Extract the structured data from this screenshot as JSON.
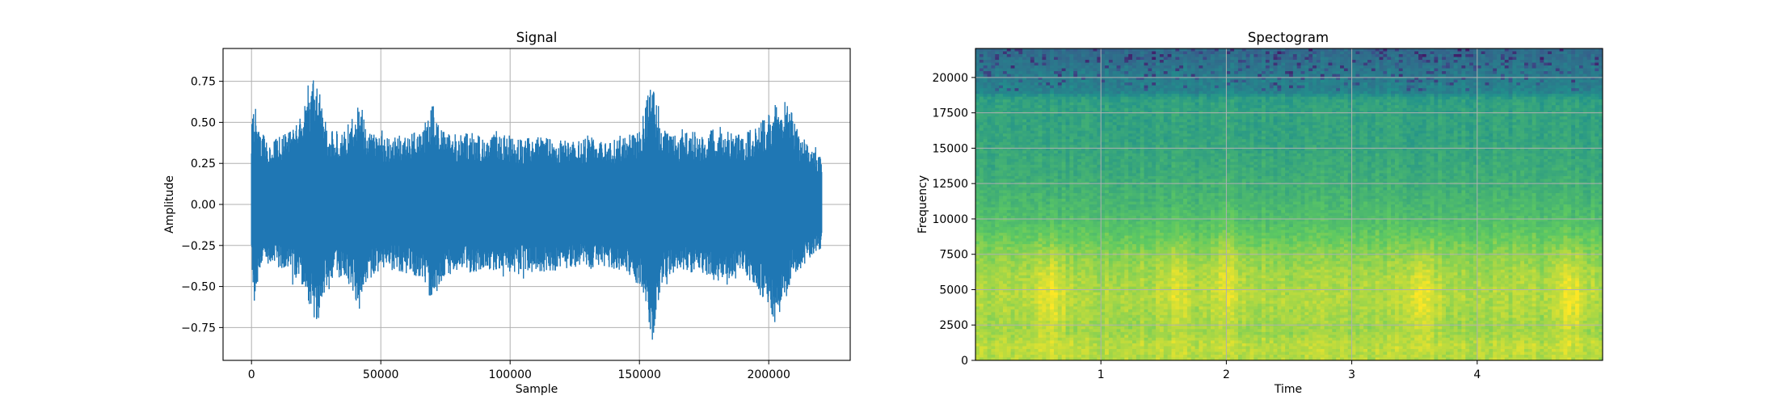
{
  "colors": {
    "signal": "#1f77b4",
    "grid": "#b0b0b0",
    "axes": "#000000",
    "viridis": [
      "#440154",
      "#3b528b",
      "#21918c",
      "#5ec962",
      "#fde725"
    ]
  },
  "chart_data": [
    {
      "type": "line",
      "title": "Signal",
      "xlabel": "Sample",
      "ylabel": "Amplitude",
      "grid": true,
      "xlim": [
        -11000,
        231500
      ],
      "ylim": [
        -0.95,
        0.95
      ],
      "xticks": [
        0,
        50000,
        100000,
        150000,
        200000
      ],
      "xtick_labels": [
        "0",
        "50000",
        "100000",
        "150000",
        "200000"
      ],
      "yticks": [
        -0.75,
        -0.5,
        -0.25,
        0.0,
        0.25,
        0.5,
        0.75
      ],
      "ytick_labels": [
        "−0.75",
        "−0.50",
        "−0.25",
        "0.00",
        "0.25",
        "0.50",
        "0.75"
      ],
      "n_samples": 220500,
      "envelope": {
        "x": [
          0,
          1500,
          3000,
          6000,
          10000,
          15000,
          20000,
          23000,
          25000,
          27000,
          30000,
          35000,
          40000,
          42000,
          45000,
          50000,
          55000,
          60000,
          65000,
          69000,
          70000,
          72000,
          75000,
          80000,
          85000,
          90000,
          95000,
          100000,
          105000,
          110000,
          115000,
          120000,
          125000,
          130000,
          135000,
          140000,
          145000,
          150000,
          153000,
          155000,
          157000,
          160000,
          165000,
          170000,
          175000,
          180000,
          185000,
          190000,
          195000,
          200000,
          203000,
          206000,
          209000,
          212000,
          215000,
          218000,
          220500
        ],
        "upper": [
          0.5,
          0.6,
          0.45,
          0.4,
          0.42,
          0.45,
          0.55,
          0.72,
          0.84,
          0.62,
          0.45,
          0.45,
          0.55,
          0.65,
          0.45,
          0.42,
          0.42,
          0.42,
          0.45,
          0.55,
          0.68,
          0.5,
          0.45,
          0.42,
          0.45,
          0.4,
          0.45,
          0.42,
          0.4,
          0.42,
          0.42,
          0.4,
          0.38,
          0.42,
          0.38,
          0.4,
          0.42,
          0.45,
          0.65,
          0.84,
          0.55,
          0.45,
          0.42,
          0.45,
          0.42,
          0.48,
          0.45,
          0.42,
          0.48,
          0.55,
          0.62,
          0.62,
          0.58,
          0.42,
          0.38,
          0.32,
          0.3
        ],
        "lower": [
          -0.4,
          -0.6,
          -0.4,
          -0.38,
          -0.4,
          -0.42,
          -0.5,
          -0.65,
          -0.78,
          -0.6,
          -0.45,
          -0.45,
          -0.55,
          -0.75,
          -0.45,
          -0.42,
          -0.4,
          -0.42,
          -0.45,
          -0.5,
          -0.62,
          -0.55,
          -0.45,
          -0.4,
          -0.42,
          -0.4,
          -0.42,
          -0.42,
          -0.4,
          -0.42,
          -0.42,
          -0.4,
          -0.38,
          -0.4,
          -0.38,
          -0.4,
          -0.42,
          -0.5,
          -0.65,
          -0.86,
          -0.6,
          -0.45,
          -0.42,
          -0.42,
          -0.42,
          -0.48,
          -0.45,
          -0.42,
          -0.5,
          -0.7,
          -0.78,
          -0.55,
          -0.45,
          -0.4,
          -0.36,
          -0.3,
          -0.28
        ]
      }
    },
    {
      "type": "heatmap",
      "title": "Spectogram",
      "xlabel": "Time",
      "ylabel": "Frequency",
      "grid": true,
      "colormap": "viridis",
      "xlim": [
        0.0,
        5.0
      ],
      "ylim": [
        0,
        22050
      ],
      "xticks": [
        1,
        2,
        3,
        4
      ],
      "xtick_labels": [
        "1",
        "2",
        "3",
        "4"
      ],
      "yticks": [
        0,
        2500,
        5000,
        7500,
        10000,
        12500,
        15000,
        17500,
        20000
      ],
      "ytick_labels": [
        "0",
        "2500",
        "5000",
        "7500",
        "10000",
        "12500",
        "15000",
        "17500",
        "20000"
      ],
      "frequency_profile": {
        "freq": [
          0,
          1000,
          2000,
          3000,
          4500,
          6000,
          7500,
          9000,
          10000,
          11500,
          13000,
          14500,
          16000,
          17500,
          18500,
          19000,
          20000,
          21000,
          22050
        ],
        "level": [
          0.88,
          0.9,
          0.85,
          0.86,
          0.88,
          0.86,
          0.82,
          0.74,
          0.7,
          0.66,
          0.62,
          0.6,
          0.58,
          0.58,
          0.56,
          0.44,
          0.42,
          0.38,
          0.34
        ]
      },
      "bright_events": [
        {
          "time": 0.6,
          "freq": 4500,
          "strength": 0.1
        },
        {
          "time": 1.6,
          "freq": 5000,
          "strength": 0.06
        },
        {
          "time": 2.0,
          "freq": 6000,
          "strength": 0.08
        },
        {
          "time": 3.55,
          "freq": 4500,
          "strength": 0.12
        },
        {
          "time": 4.75,
          "freq": 4500,
          "strength": 0.1
        }
      ],
      "dark_streaks_above": 19000
    }
  ]
}
